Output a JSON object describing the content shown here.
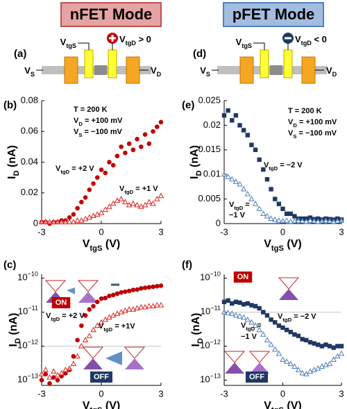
{
  "header": {
    "left": "nFET Mode",
    "right": "pFET Mode"
  },
  "diagrams": [
    {
      "label": "(a)",
      "gate_s": "VtgS",
      "gate_d": "VtgD > 0",
      "source": "VS",
      "drain": "VD"
    },
    {
      "label": "(d)",
      "gate_s": "VtgS",
      "gate_d": "VtgD < 0",
      "source": "VS",
      "drain": "VD"
    }
  ],
  "chart_data": [
    {
      "type": "scatter",
      "panel": "(b)",
      "xlabel": "VtgS (V)",
      "ylabel": "ID (nA)",
      "log": false,
      "x": [
        -3,
        -2.8,
        -2.6,
        -2.4,
        -2.2,
        -2,
        -1.8,
        -1.6,
        -1.4,
        -1.2,
        -1,
        -0.8,
        -0.6,
        -0.4,
        -0.2,
        0,
        0.2,
        0.4,
        0.6,
        0.8,
        1,
        1.2,
        1.4,
        1.6,
        1.8,
        2,
        2.2,
        2.4,
        2.6,
        2.8,
        3
      ],
      "xlim": [
        -3,
        3
      ],
      "xticks": [
        -3,
        0,
        3
      ],
      "ylim": [
        0,
        0.08
      ],
      "yticks": [
        0,
        0.02,
        0.04,
        0.06,
        0.08
      ],
      "series": [
        {
          "color": "#c00000",
          "marker": "circle",
          "filled": true,
          "values": [
            0.001,
            0.001,
            0,
            0.001,
            0.001,
            0.002,
            0.002,
            0.004,
            0.006,
            0.01,
            0.014,
            0.017,
            0.022,
            0.026,
            0.03,
            0.035,
            0.033,
            0.04,
            0.038,
            0.044,
            0.05,
            0.046,
            0.052,
            0.048,
            0.055,
            0.05,
            0.058,
            0.052,
            0.06,
            0.063,
            0.066
          ]
        },
        {
          "color": "#e02020",
          "marker": "triangle",
          "filled": false,
          "values": [
            0.001,
            0.001,
            0.001,
            0.001,
            0.001,
            0.001,
            0.001,
            0.001,
            0.001,
            0.002,
            0.002,
            0.003,
            0.004,
            0.005,
            0.006,
            0.007,
            0.009,
            0.011,
            0.013,
            0.015,
            0.016,
            0.014,
            0.012,
            0.013,
            0.012,
            0.011,
            0.012,
            0.014,
            0.013,
            0.016,
            0.018
          ]
        }
      ],
      "annotations": [
        "T = 200 K",
        "VD = +100 mV",
        "VS = −100 mV",
        "VtgD = +2 V",
        "VtgD = +1 V"
      ]
    },
    {
      "type": "scatter",
      "panel": "(c)",
      "xlabel": "VtgS (V)",
      "ylabel": "ID (nA)",
      "log": true,
      "x": [
        -3,
        -2.8,
        -2.6,
        -2.4,
        -2.2,
        -2,
        -1.8,
        -1.6,
        -1.4,
        -1.2,
        -1,
        -0.8,
        -0.6,
        -0.4,
        -0.2,
        0,
        0.2,
        0.4,
        0.6,
        0.8,
        1,
        1.2,
        1.4,
        1.6,
        1.8,
        2,
        2.2,
        2.4,
        2.6,
        2.8,
        3
      ],
      "xlim": [
        -3,
        3
      ],
      "xticks": [
        -3,
        0,
        3
      ],
      "ylim": [
        7e-14,
        1.3e-10
      ],
      "yticks": [
        {
          "value": 1e-13,
          "label": "10−13"
        },
        {
          "value": 1e-12,
          "label": "10−12"
        },
        {
          "value": 1e-11,
          "label": "10−11"
        },
        {
          "value": 1e-10,
          "label": "10−10"
        }
      ],
      "hline": 1e-12,
      "series": [
        {
          "color": "#c00000",
          "marker": "circle",
          "filled": true,
          "values": [
            1e-13,
            1.5e-13,
            8e-14,
            1.2e-13,
            1e-13,
            1.3e-13,
            1.6e-13,
            2e-13,
            5e-13,
            1.5e-12,
            4e-12,
            8e-12,
            1.2e-11,
            1.5e-11,
            2e-11,
            2.5e-11,
            2.6e-11,
            3e-11,
            3.2e-11,
            3.5e-11,
            3.8e-11,
            4e-11,
            4.2e-11,
            4.5e-11,
            4.6e-11,
            5e-11,
            5.2e-11,
            5.4e-11,
            5.6e-11,
            5.8e-11,
            6e-11
          ]
        },
        {
          "color": "#e02020",
          "marker": "triangle",
          "filled": false,
          "values": [
            1.5e-13,
            2e-13,
            1.2e-13,
            1.8e-13,
            1.4e-13,
            1.6e-13,
            2e-13,
            2.2e-13,
            3e-13,
            5e-13,
            1e-12,
            1.5e-12,
            2e-12,
            3e-12,
            4e-12,
            5e-12,
            6e-12,
            7e-12,
            8e-12,
            9e-12,
            1e-11,
            1.1e-11,
            1.2e-11,
            1.2e-11,
            1.3e-11,
            1.4e-11,
            1.4e-11,
            1.5e-11,
            1.5e-11,
            1.6e-11,
            1.6e-11
          ]
        }
      ],
      "annotations": [
        "ON",
        "VtgD = +2 V",
        "VtgD = +1V",
        "OFF"
      ]
    },
    {
      "type": "scatter",
      "panel": "(e)",
      "xlabel": "VtgS (V)",
      "ylabel": "ID (nA)",
      "log": false,
      "x": [
        -3,
        -2.8,
        -2.6,
        -2.4,
        -2.2,
        -2,
        -1.8,
        -1.6,
        -1.4,
        -1.2,
        -1,
        -0.8,
        -0.6,
        -0.4,
        -0.2,
        0,
        0.2,
        0.4,
        0.6,
        0.8,
        1,
        1.2,
        1.4,
        1.6,
        1.8,
        2,
        2.2,
        2.4,
        2.6,
        2.8,
        3
      ],
      "xlim": [
        -3,
        3
      ],
      "xticks": [
        -3,
        0,
        3
      ],
      "ylim": [
        0,
        0.025
      ],
      "yticks": [
        0,
        0.005,
        0.01,
        0.015,
        0.02,
        0.025
      ],
      "series": [
        {
          "color": "#1f3864",
          "marker": "square",
          "filled": true,
          "values": [
            0.022,
            0.023,
            0.021,
            0.022,
            0.02,
            0.019,
            0.018,
            0.016,
            0.015,
            0.013,
            0.011,
            0.009,
            0.007,
            0.005,
            0.004,
            0.003,
            0.002,
            0.002,
            0.0015,
            0.001,
            0.001,
            0.001,
            0.0012,
            0.0009,
            0.001,
            0.0008,
            0.001,
            0.0009,
            0.0008,
            0.001,
            0.0008
          ]
        },
        {
          "color": "#4a7ebb",
          "marker": "triangle",
          "filled": false,
          "values": [
            0.01,
            0.0095,
            0.009,
            0.0085,
            0.008,
            0.007,
            0.006,
            0.005,
            0.004,
            0.003,
            0.002,
            0.0015,
            0.001,
            0.0008,
            0.0006,
            0.0005,
            0.0006,
            0.0004,
            0.0005,
            0.0006,
            0.0005,
            0.0004,
            0.0006,
            0.0005,
            0.0004,
            0.0005,
            0.0006,
            0.0005,
            0.0004,
            0.0005,
            0.0006
          ]
        }
      ],
      "annotations": [
        "T = 200 K",
        "VD = +100 mV",
        "VS = −100 mV",
        "VtgD = −2 V",
        "VtgD =",
        "−1 V"
      ]
    },
    {
      "type": "scatter",
      "panel": "(f)",
      "xlabel": "VtgS (V)",
      "ylabel": "ID (nA)",
      "log": true,
      "x": [
        -3,
        -2.8,
        -2.6,
        -2.4,
        -2.2,
        -2,
        -1.8,
        -1.6,
        -1.4,
        -1.2,
        -1,
        -0.8,
        -0.6,
        -0.4,
        -0.2,
        0,
        0.2,
        0.4,
        0.6,
        0.8,
        1,
        1.2,
        1.4,
        1.6,
        1.8,
        2,
        2.2,
        2.4,
        2.6,
        2.8,
        3
      ],
      "xlim": [
        -3,
        3
      ],
      "xticks": [
        -3,
        0,
        3
      ],
      "ylim": [
        7e-14,
        1.3e-10
      ],
      "yticks": [
        {
          "value": 1e-13,
          "label": "10−13"
        },
        {
          "value": 1e-12,
          "label": "10−12"
        },
        {
          "value": 1e-11,
          "label": "10−11"
        },
        {
          "value": 1e-10,
          "label": "10−10"
        }
      ],
      "hline": 1e-11,
      "series": [
        {
          "color": "#1f3864",
          "marker": "square",
          "filled": true,
          "values": [
            2e-11,
            2.2e-11,
            1.8e-11,
            2e-11,
            1.9e-11,
            1.7e-11,
            1.8e-11,
            1.6e-11,
            1.5e-11,
            1.3e-11,
            1e-11,
            8e-12,
            6e-12,
            5e-12,
            4e-12,
            3.5e-12,
            3e-12,
            2.6e-12,
            2.2e-12,
            2e-12,
            1.6e-12,
            1.5e-12,
            1.3e-12,
            1.2e-12,
            1.1e-12,
            1e-12,
            1.1e-12,
            1e-12,
            9e-13,
            1e-12,
            1e-12
          ]
        },
        {
          "color": "#4a7ebb",
          "marker": "triangle",
          "filled": false,
          "values": [
            1e-11,
            9.5e-12,
            9e-12,
            8e-12,
            7.5e-12,
            7e-12,
            6e-12,
            5e-12,
            4e-12,
            3e-12,
            2.2e-12,
            1.5e-12,
            1.1e-12,
            8e-13,
            6e-13,
            4e-13,
            3.5e-13,
            3e-13,
            2.5e-13,
            2e-13,
            1.6e-13,
            1.5e-13,
            1.8e-13,
            2e-13,
            2.2e-13,
            2.5e-13,
            2.8e-13,
            3e-13,
            4e-13,
            5e-13,
            6e-13
          ]
        }
      ],
      "annotations": [
        "ON",
        "VtgD = −2 V",
        "VtgD =",
        "−1 V",
        "OFF"
      ]
    }
  ]
}
